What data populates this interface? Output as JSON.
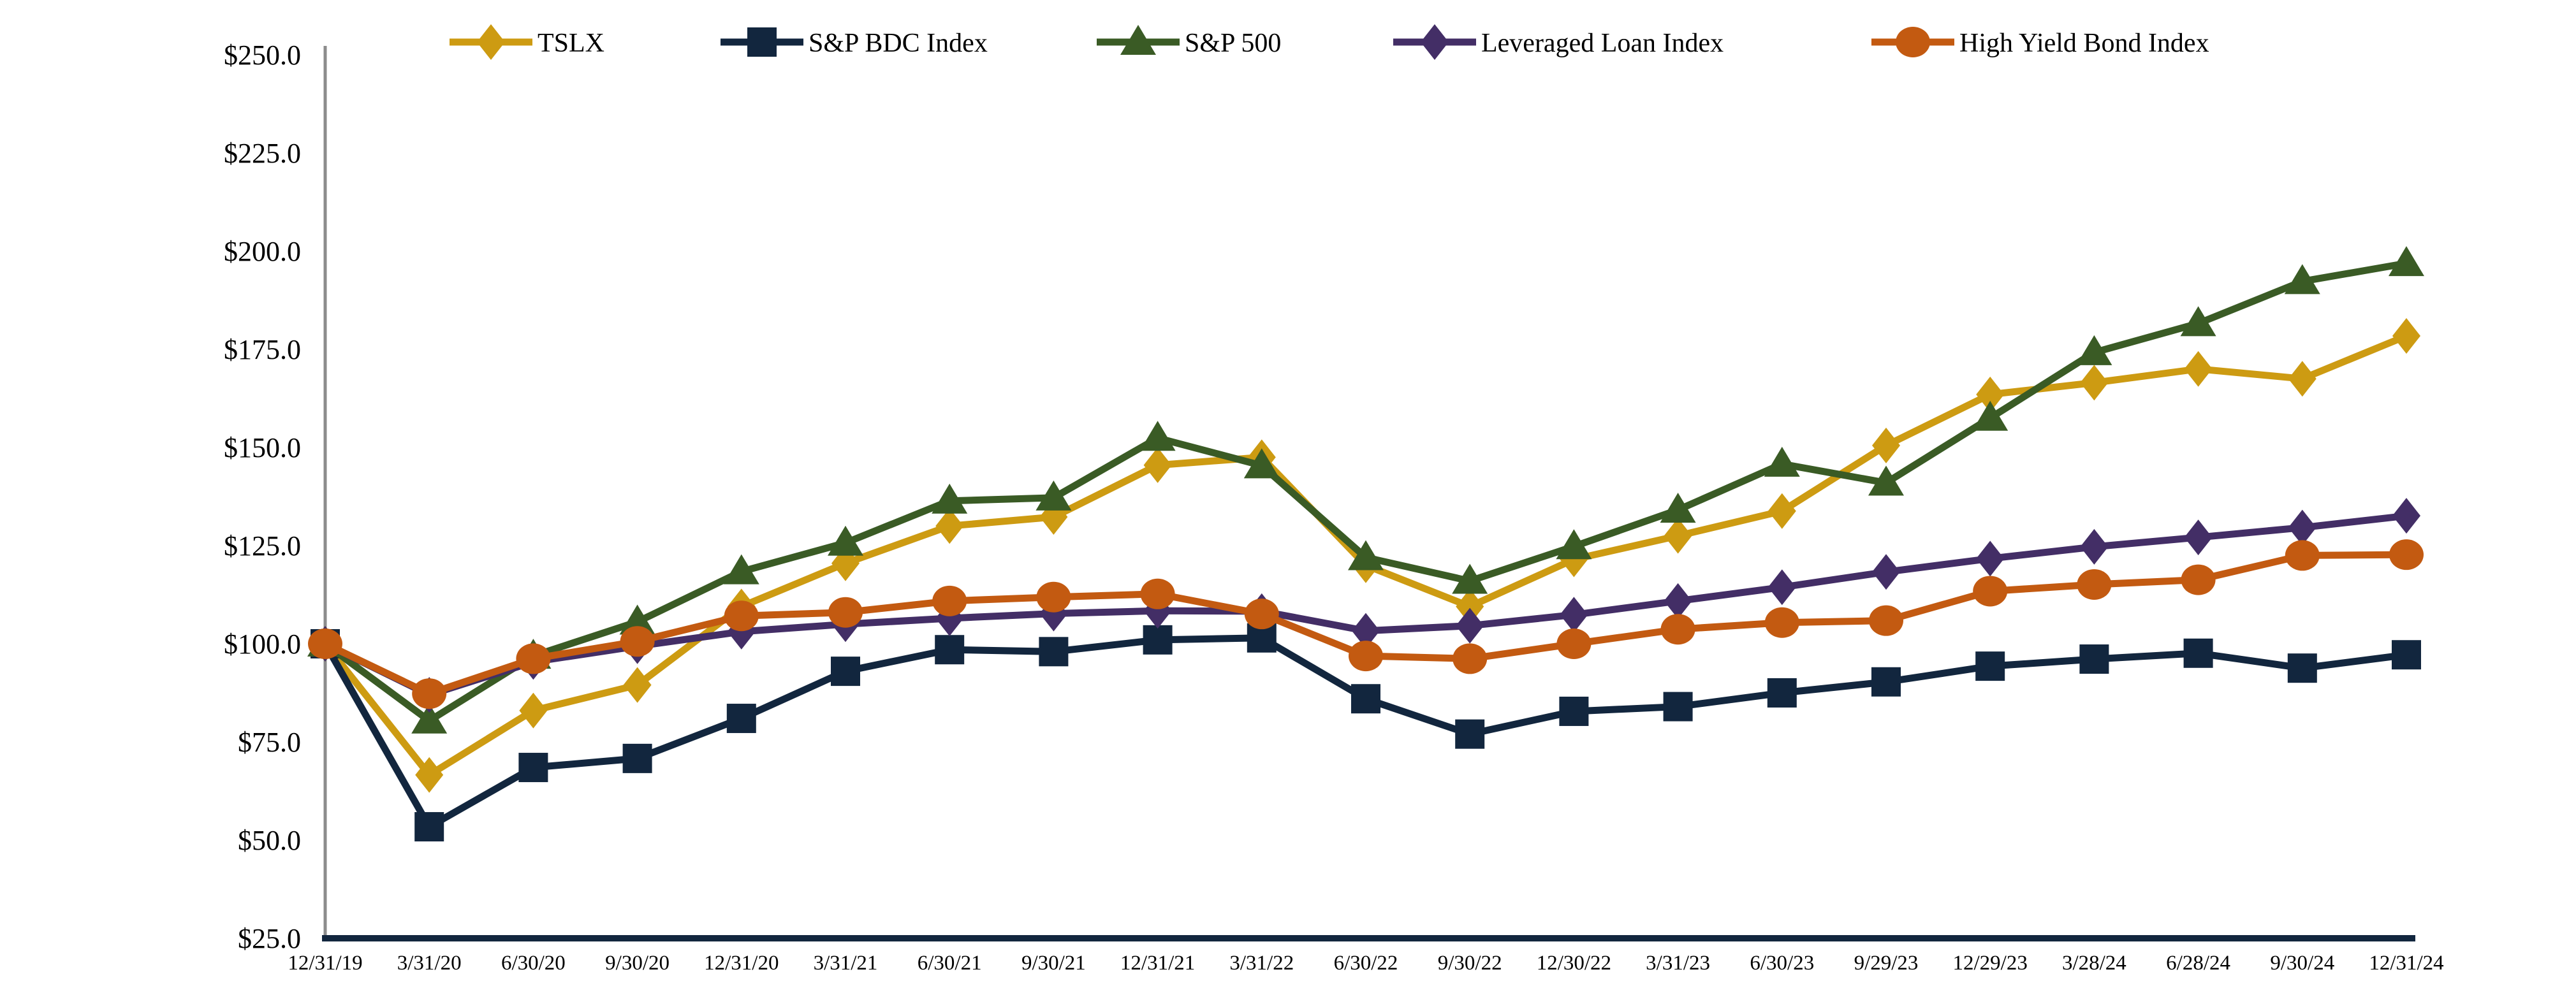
{
  "chart_data": {
    "type": "line",
    "title": "",
    "legend_position": "top",
    "grid": false,
    "x_tick_labels": [
      "12/31/19",
      "3/31/20",
      "6/30/20",
      "9/30/20",
      "12/31/20",
      "3/31/21",
      "6/30/21",
      "9/30/21",
      "12/31/21",
      "3/31/22",
      "6/30/22",
      "9/30/22",
      "12/30/22",
      "3/31/23",
      "6/30/23",
      "9/29/23",
      "12/29/23",
      "3/28/24",
      "6/28/24",
      "9/30/24",
      "12/31/24"
    ],
    "y_axis": {
      "ticks": [
        "$250.0",
        "$225.0",
        "$200.0",
        "$175.0",
        "$150.0",
        "$125.0",
        "$100.0",
        "$75.0",
        "$50.0",
        "$25.0"
      ],
      "tick_values": [
        250,
        225,
        200,
        175,
        150,
        125,
        100,
        75,
        50,
        25
      ],
      "min": 25,
      "max": 250,
      "step": 25,
      "prefix": "$"
    },
    "series": [
      {
        "name": "TSLX",
        "marker": "diamond",
        "marker_icon": "diamond-marker-icon",
        "color": "#CD9B12",
        "values": [
          100.0,
          66.6,
          83.0,
          89.5,
          109.5,
          120.5,
          130.0,
          132.3,
          145.5,
          147.5,
          120.0,
          109.5,
          121.5,
          127.5,
          133.8,
          150.5,
          163.5,
          166.5,
          170.0,
          167.5,
          178.4
        ]
      },
      {
        "name": "S&P BDC Index",
        "marker": "square",
        "marker_icon": "square-marker-icon",
        "color": "#12263E",
        "values": [
          100.0,
          53.4,
          68.5,
          70.8,
          81.0,
          93.0,
          98.5,
          98.0,
          101.0,
          101.5,
          86.0,
          77.0,
          82.8,
          84.0,
          87.5,
          90.3,
          94.3,
          96.1,
          97.6,
          93.8,
          97.2
        ]
      },
      {
        "name": "S&P 500",
        "marker": "triangle",
        "marker_icon": "triangle-marker-icon",
        "color": "#3A5B25",
        "values": [
          100.0,
          80.4,
          96.9,
          105.6,
          118.4,
          125.7,
          136.4,
          137.2,
          152.4,
          145.4,
          122.0,
          116.0,
          124.8,
          134.1,
          145.8,
          141.0,
          157.5,
          174.2,
          181.6,
          192.3,
          196.9
        ]
      },
      {
        "name": "Leveraged Loan Index",
        "marker": "diamond",
        "marker_icon": "diamond-marker-icon",
        "color": "#432E66",
        "values": [
          100.0,
          87.0,
          95.4,
          99.4,
          103.1,
          105.0,
          106.5,
          107.7,
          108.4,
          108.3,
          103.3,
          104.6,
          107.4,
          110.9,
          114.4,
          118.3,
          121.7,
          124.7,
          127.1,
          129.6,
          132.6
        ]
      },
      {
        "name": "High Yield Bond Index",
        "marker": "circle",
        "marker_icon": "circle-marker-icon",
        "color": "#C35A11",
        "values": [
          100.0,
          87.3,
          96.2,
          100.6,
          107.1,
          108.0,
          110.9,
          111.9,
          112.7,
          107.6,
          96.9,
          96.2,
          100.0,
          103.7,
          105.4,
          105.9,
          113.4,
          115.1,
          116.3,
          122.5,
          122.7
        ]
      }
    ],
    "axis_colors": {
      "y_axis_line": "#8C8C8C",
      "x_axis_line": "#12263E",
      "label_color": "#000000"
    }
  }
}
